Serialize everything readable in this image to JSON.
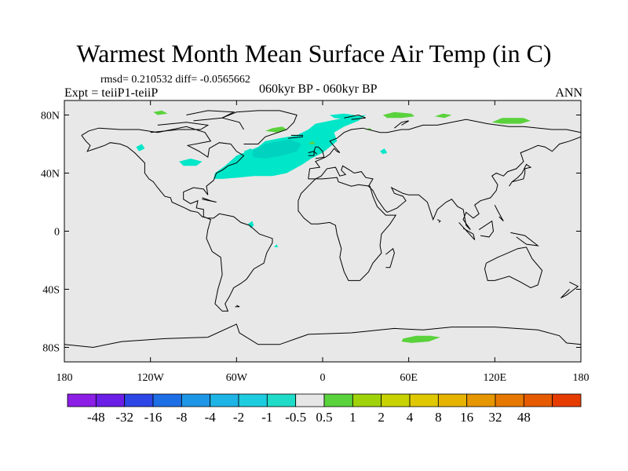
{
  "title": "Warmest Month Mean Surface Air Temp (in C)",
  "stats": "rmsd= 0.210532 diff= -0.0565662",
  "experiment": "Expt = teiiP1-teiiP",
  "period": "060kyr BP - 060kyr BP",
  "season": "ANN",
  "map": {
    "lon_range": [
      -180,
      180
    ],
    "lat_range": [
      -90,
      90
    ],
    "ocean_color": "#e8e8e8",
    "coast_color": "#000000",
    "x_ticks": [
      {
        "value": -180,
        "label": "180"
      },
      {
        "value": -120,
        "label": "120W"
      },
      {
        "value": -60,
        "label": "60W"
      },
      {
        "value": 0,
        "label": "0"
      },
      {
        "value": 60,
        "label": "60E"
      },
      {
        "value": 120,
        "label": "120E"
      },
      {
        "value": 180,
        "label": "180"
      }
    ],
    "y_ticks": [
      {
        "value": 80,
        "label": "80N"
      },
      {
        "value": 40,
        "label": "40N"
      },
      {
        "value": 0,
        "label": "0"
      },
      {
        "value": -40,
        "label": "40S"
      },
      {
        "value": -80,
        "label": "80S"
      }
    ],
    "anomaly_regions": [
      {
        "color": "#00e6c8",
        "polygon": [
          [
            -75,
            40
          ],
          [
            -68,
            45
          ],
          [
            -60,
            52
          ],
          [
            -45,
            58
          ],
          [
            -40,
            62
          ],
          [
            -30,
            64
          ],
          [
            -18,
            66
          ],
          [
            -10,
            70
          ],
          [
            -5,
            74
          ],
          [
            5,
            76
          ],
          [
            15,
            78
          ],
          [
            22,
            79
          ],
          [
            30,
            80
          ],
          [
            25,
            76
          ],
          [
            15,
            72
          ],
          [
            8,
            68
          ],
          [
            10,
            62
          ],
          [
            5,
            58
          ],
          [
            0,
            54
          ],
          [
            -8,
            50
          ],
          [
            -14,
            46
          ],
          [
            -25,
            40
          ],
          [
            -35,
            38
          ],
          [
            -48,
            38
          ],
          [
            -58,
            37
          ],
          [
            -70,
            36
          ],
          [
            -76,
            36
          ]
        ]
      },
      {
        "color": "#00d2c0",
        "polygon": [
          [
            -50,
            55
          ],
          [
            -40,
            60
          ],
          [
            -30,
            62
          ],
          [
            -22,
            63
          ],
          [
            -15,
            60
          ],
          [
            -18,
            55
          ],
          [
            -28,
            52
          ],
          [
            -40,
            50
          ],
          [
            -48,
            51
          ]
        ]
      },
      {
        "color": "#00e6c8",
        "polygon": [
          [
            5,
            80
          ],
          [
            15,
            81
          ],
          [
            22,
            80
          ],
          [
            26,
            78
          ],
          [
            18,
            77
          ],
          [
            8,
            78
          ]
        ]
      },
      {
        "color": "#00e6c8",
        "polygon": [
          [
            -100,
            48
          ],
          [
            -92,
            50
          ],
          [
            -84,
            48
          ],
          [
            -88,
            45
          ],
          [
            -97,
            45
          ]
        ]
      },
      {
        "color": "#00e6c8",
        "polygon": [
          [
            -52,
            5
          ],
          [
            -49,
            7
          ],
          [
            -48,
            4
          ],
          [
            -50,
            2
          ]
        ]
      },
      {
        "color": "#00e6c8",
        "polygon": [
          [
            -130,
            58
          ],
          [
            -126,
            60
          ],
          [
            -124,
            57
          ],
          [
            -128,
            55
          ]
        ]
      },
      {
        "color": "#00e6c8",
        "polygon": [
          [
            -34,
            -11
          ],
          [
            -32,
            -9
          ],
          [
            -31,
            -11
          ]
        ]
      },
      {
        "color": "#00e6c8",
        "polygon": [
          [
            -55,
            55
          ],
          [
            -50,
            57
          ],
          [
            -48,
            54
          ],
          [
            -53,
            53
          ]
        ]
      },
      {
        "color": "#00e6c8",
        "polygon": [
          [
            40,
            55
          ],
          [
            43,
            57
          ],
          [
            45,
            54
          ],
          [
            42,
            53
          ]
        ]
      },
      {
        "color": "#5ad23c",
        "polygon": [
          [
            42,
            80
          ],
          [
            50,
            82
          ],
          [
            62,
            81
          ],
          [
            64,
            79
          ],
          [
            55,
            78
          ],
          [
            45,
            78
          ]
        ]
      },
      {
        "color": "#5ad23c",
        "polygon": [
          [
            -40,
            69
          ],
          [
            -35,
            71
          ],
          [
            -28,
            72
          ],
          [
            -25,
            70
          ],
          [
            -32,
            68
          ]
        ]
      },
      {
        "color": "#5ad23c",
        "polygon": [
          [
            78,
            79
          ],
          [
            85,
            78
          ],
          [
            90,
            80
          ],
          [
            84,
            81
          ]
        ]
      },
      {
        "color": "#5ad23c",
        "polygon": [
          [
            118,
            75
          ],
          [
            125,
            78
          ],
          [
            140,
            78
          ],
          [
            145,
            76
          ],
          [
            138,
            74
          ],
          [
            125,
            74
          ]
        ]
      },
      {
        "color": "#5ad23c",
        "polygon": [
          [
            -118,
            82
          ],
          [
            -112,
            83
          ],
          [
            -108,
            81
          ],
          [
            -115,
            80
          ]
        ]
      },
      {
        "color": "#5ad23c",
        "polygon": [
          [
            -10,
            60
          ],
          [
            -7,
            62
          ],
          [
            -5,
            60
          ]
        ]
      },
      {
        "color": "#5ad23c",
        "polygon": [
          [
            30,
            70
          ],
          [
            33,
            71
          ],
          [
            35,
            69
          ]
        ]
      },
      {
        "color": "#5ad23c",
        "polygon": [
          [
            56,
            -74
          ],
          [
            65,
            -72
          ],
          [
            75,
            -72
          ],
          [
            82,
            -73
          ],
          [
            74,
            -76
          ],
          [
            62,
            -77
          ],
          [
            55,
            -76
          ]
        ]
      }
    ]
  },
  "colorbar": {
    "colors": [
      "#8c1ee6",
      "#6a1ee6",
      "#2d46e6",
      "#1e6ee6",
      "#1e96e6",
      "#1eb4e6",
      "#1ecce0",
      "#1edcc8",
      "#e6e6e6",
      "#5ad23c",
      "#a0d20a",
      "#c8d200",
      "#e0c800",
      "#e6b400",
      "#e69600",
      "#e67800",
      "#e65a00",
      "#e63c00"
    ],
    "labels": [
      "-48",
      "-32",
      "-16",
      "-8",
      "-4",
      "-2",
      "-1",
      "-0.5",
      "0.5",
      "1",
      "2",
      "4",
      "8",
      "16",
      "32",
      "48"
    ]
  }
}
